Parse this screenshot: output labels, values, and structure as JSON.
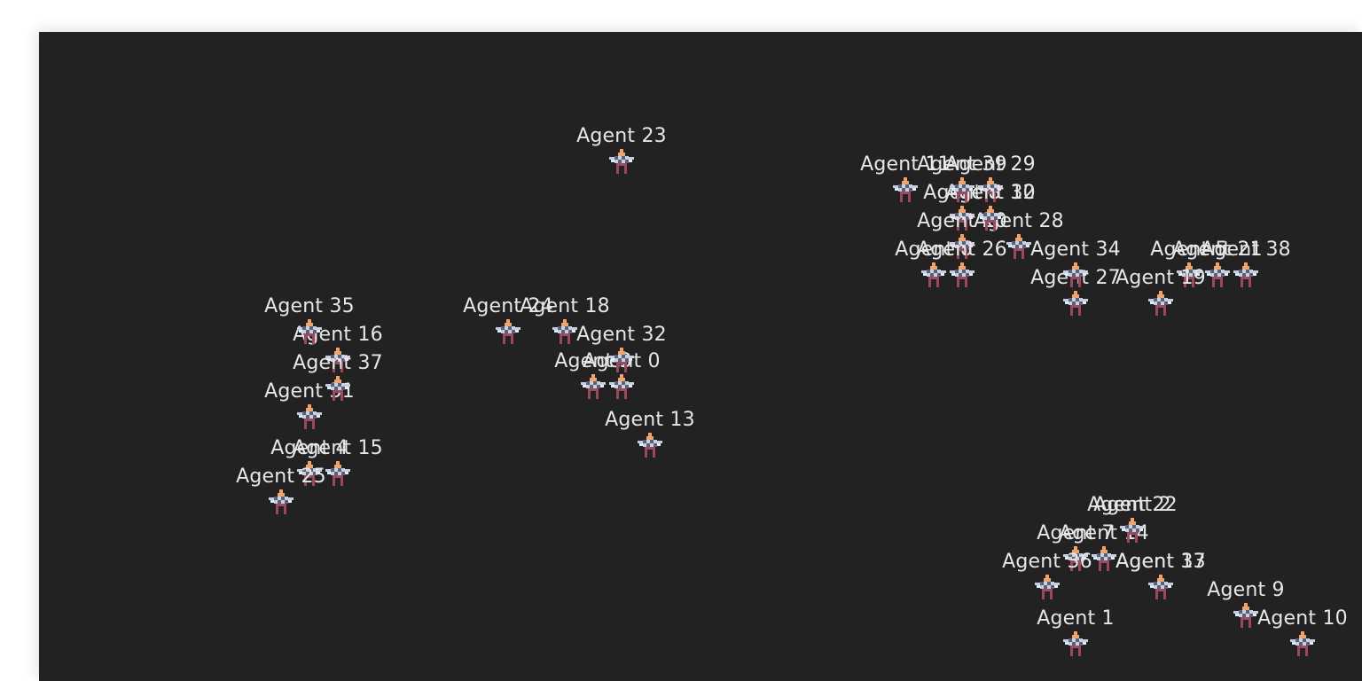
{
  "colors": {
    "canvas_background": "#222222",
    "page_background": "#ffffff",
    "label_color": "#e6e6e6",
    "sprite_head": "#f4a460",
    "sprite_body": "#c9cfe0",
    "sprite_legs": "#9a4a5a"
  },
  "agents": [
    {
      "label": "Agent 0"
    },
    {
      "label": "Agent 1"
    },
    {
      "label": "Agent 2"
    },
    {
      "label": "Agent 3"
    },
    {
      "label": "Agent 4"
    },
    {
      "label": "Agent 5"
    },
    {
      "label": "Agent 6"
    },
    {
      "label": "Agent 7"
    },
    {
      "label": "Agent 8"
    },
    {
      "label": "Agent 9"
    },
    {
      "label": "Agent 10"
    },
    {
      "label": "Agent 11"
    },
    {
      "label": "Agent 12"
    },
    {
      "label": "Agent 13"
    },
    {
      "label": "Agent 14"
    },
    {
      "label": "Agent 15"
    },
    {
      "label": "Agent 16"
    },
    {
      "label": "Agent 17"
    },
    {
      "label": "Agent 18"
    },
    {
      "label": "Agent 19"
    },
    {
      "label": "Agent 20"
    },
    {
      "label": "Agent 21"
    },
    {
      "label": "Agent 22"
    },
    {
      "label": "Agent 23"
    },
    {
      "label": "Agent 24"
    },
    {
      "label": "Agent 25"
    },
    {
      "label": "Agent 26"
    },
    {
      "label": "Agent 27"
    },
    {
      "label": "Agent 28"
    },
    {
      "label": "Agent 29"
    },
    {
      "label": "Agent 30"
    },
    {
      "label": "Agent 31"
    },
    {
      "label": "Agent 32"
    },
    {
      "label": "Agent 33"
    },
    {
      "label": "Agent 34"
    },
    {
      "label": "Agent 35"
    },
    {
      "label": "Agent 36"
    },
    {
      "label": "Agent 37"
    },
    {
      "label": "Agent 38"
    },
    {
      "label": "Agent 39"
    }
  ]
}
